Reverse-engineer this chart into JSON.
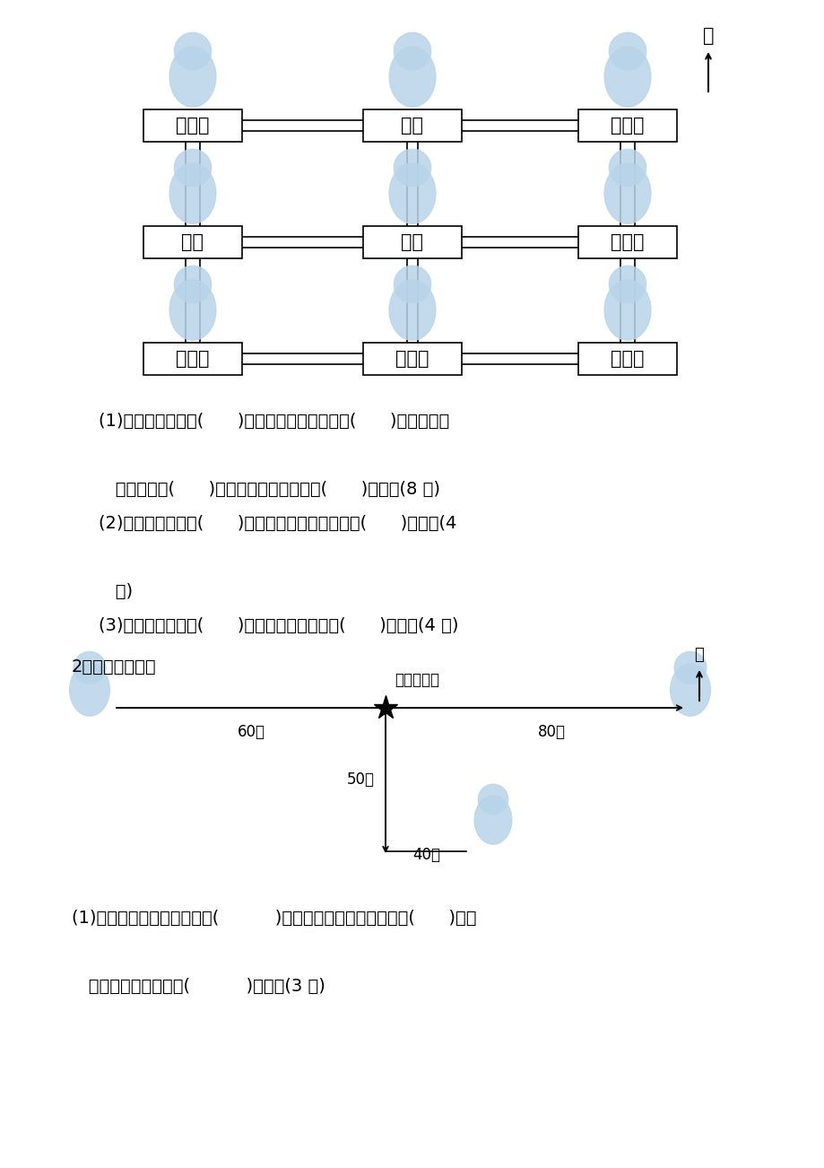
{
  "bg_color": "#ffffff",
  "grid_labels": [
    [
      "狮子山",
      "猴山",
      "大象馆"
    ],
    [
      "超市",
      "喷泉",
      "游乐场"
    ],
    [
      "熊猫馆",
      "孔雀园",
      "海豚馆"
    ]
  ],
  "north_char": "北",
  "q1_lines": [
    "(1)大象馆在喷泉的(      )方向。熊猫馆在喷泉的(      )方向。海豚",
    "",
    "   馆在喷泉的(      )方向。狮子山在喷泉的(      )方向。(8 分)",
    "(2)猴山在游乐场的(      )方向。孔雀园在游乐场的(      )方向。(4",
    "",
    "   分)",
    "(3)孔雀园在超市的(      )方向。猴山在超市的(      )方向。(4 分)"
  ],
  "s2_title": "2．森林运动会。",
  "forest_label": "森林运动场",
  "label_60": "60米",
  "label_80": "80米",
  "label_50": "50米",
  "label_40": "40米",
  "q2_lines": [
    "(1)小狐狸家在森林运动场的(          )方向，小老鼠家在小狗家的(      )边，",
    "",
    "   小狗家在小狐狸家的(          )方向。(3 分)"
  ]
}
